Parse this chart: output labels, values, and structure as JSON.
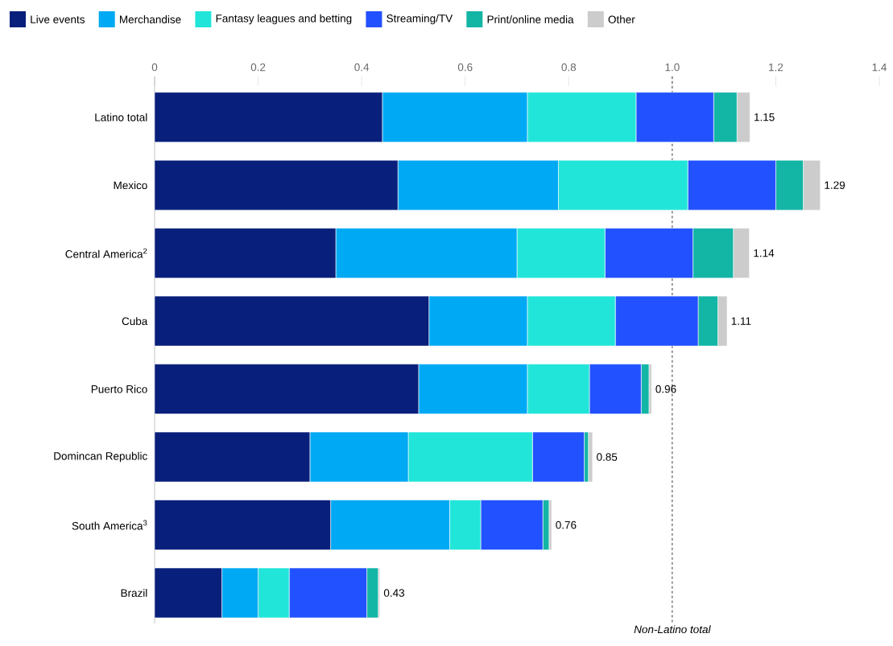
{
  "chart_data": {
    "type": "bar",
    "orientation": "horizontal",
    "stacked": true,
    "legend": "top",
    "grid": false,
    "categories": [
      "Latino total",
      "Mexico",
      "Central America$^{2}$",
      "Cuba",
      "Puerto Rico",
      "Domincan Republic",
      "South America$^{3}$",
      "Brazil"
    ],
    "series": [
      {
        "name": "Live events",
        "color": "#081f7b",
        "values": [
          0.44,
          0.47,
          0.35,
          0.53,
          0.51,
          0.3,
          0.34,
          0.13
        ]
      },
      {
        "name": "Merchandise",
        "color": "#00a9f4",
        "values": [
          0.28,
          0.31,
          0.35,
          0.19,
          0.21,
          0.19,
          0.23,
          0.07
        ]
      },
      {
        "name": "Fantasy leagues and betting",
        "color": "#22e5d9",
        "values": [
          0.21,
          0.25,
          0.17,
          0.17,
          0.12,
          0.24,
          0.06,
          0.06
        ]
      },
      {
        "name": "Streaming/TV",
        "color": "#2251ff",
        "values": [
          0.15,
          0.17,
          0.17,
          0.16,
          0.1,
          0.1,
          0.12,
          0.15
        ]
      },
      {
        "name": "Print/online media",
        "color": "#13b5a5",
        "values": [
          0.045,
          0.053,
          0.078,
          0.038,
          0.015,
          0.008,
          0.012,
          0.022
        ]
      },
      {
        "name": "Other",
        "color": "#cccccc",
        "values": [
          0.025,
          0.033,
          0.031,
          0.018,
          0.005,
          0.008,
          0.005,
          0.003
        ]
      }
    ],
    "totals": [
      "1.15",
      "1.29",
      "1.14",
      "1.11",
      "0.96",
      "0.85",
      "0.76",
      "0.43"
    ],
    "xlim": [
      0,
      1.4
    ],
    "xticks": [
      0,
      0.2,
      0.4,
      0.6,
      0.8,
      {
        "value": 1,
        "label": "1.0"
      },
      1.2,
      1.4
    ],
    "ref_lines": [
      {
        "axis": "x",
        "value": 1,
        "label": "Non-Latino total",
        "line_style": "dashed",
        "color": "#000000"
      }
    ]
  }
}
